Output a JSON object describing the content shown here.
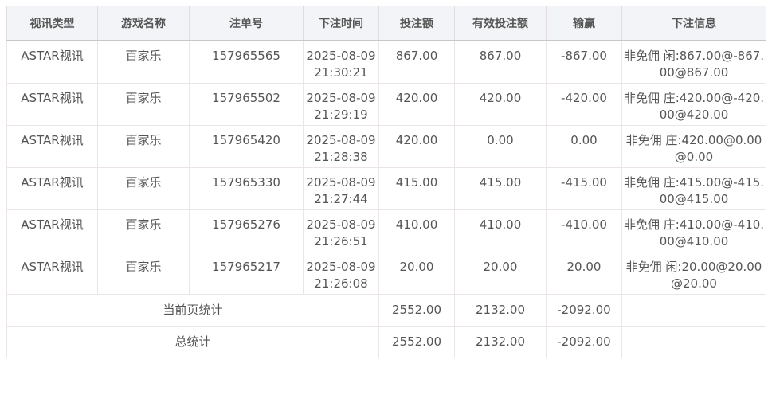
{
  "headers": [
    "视讯类型",
    "游戏名称",
    "注单号",
    "下注时间",
    "投注额",
    "有效投注额",
    "输赢",
    "下注信息"
  ],
  "rows": [
    [
      "ASTAR视讯",
      "百家乐",
      "157965565",
      "2025-08-09 21:30:21",
      "867.00",
      "867.00",
      "-867.00",
      "非免佣 闲:867.00@-867.00@867.00"
    ],
    [
      "ASTAR视讯",
      "百家乐",
      "157965502",
      "2025-08-09 21:29:19",
      "420.00",
      "420.00",
      "-420.00",
      "非免佣 庄:420.00@-420.00@420.00"
    ],
    [
      "ASTAR视讯",
      "百家乐",
      "157965420",
      "2025-08-09 21:28:38",
      "420.00",
      "0.00",
      "0.00",
      "非免佣 庄:420.00@0.00@0.00"
    ],
    [
      "ASTAR视讯",
      "百家乐",
      "157965330",
      "2025-08-09 21:27:44",
      "415.00",
      "415.00",
      "-415.00",
      "非免佣 庄:415.00@-415.00@415.00"
    ],
    [
      "ASTAR视讯",
      "百家乐",
      "157965276",
      "2025-08-09 21:26:51",
      "410.00",
      "410.00",
      "-410.00",
      "非免佣 庄:410.00@-410.00@410.00"
    ],
    [
      "ASTAR视讯",
      "百家乐",
      "157965217",
      "2025-08-09 21:26:08",
      "20.00",
      "20.00",
      "20.00",
      "非免佣 闲:20.00@20.00@20.00"
    ]
  ],
  "page_total": {
    "label": "当前页统计",
    "bet": "2552.00",
    "valid": "2132.00",
    "win": "-2092.00"
  },
  "grand_total": {
    "label": "总统计",
    "bet": "2552.00",
    "valid": "2132.00",
    "win": "-2092.00"
  }
}
